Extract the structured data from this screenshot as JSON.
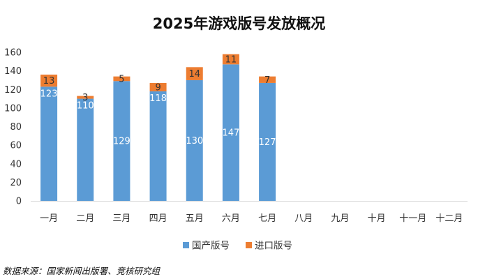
{
  "chart_data": {
    "type": "bar",
    "stacked": true,
    "title": "2025年游戏版号发放概况",
    "categories": [
      "一月",
      "二月",
      "三月",
      "四月",
      "五月",
      "六月",
      "七月",
      "八月",
      "九月",
      "十月",
      "十一月",
      "十二月"
    ],
    "series": [
      {
        "name": "国产版号",
        "color": "#5b9bd5",
        "label_color": "#ffffff",
        "values": [
          123,
          110,
          129,
          118,
          130,
          147,
          127,
          null,
          null,
          null,
          null,
          null
        ]
      },
      {
        "name": "进口版号",
        "color": "#ed7d31",
        "label_color": "#333333",
        "values": [
          13,
          3,
          5,
          9,
          14,
          11,
          7,
          null,
          null,
          null,
          null,
          null
        ]
      }
    ],
    "ylim": [
      0,
      160
    ],
    "yticks": [
      0,
      20,
      40,
      60,
      80,
      100,
      120,
      140,
      160
    ],
    "grid": false,
    "legend_position": "bottom"
  },
  "source": "数据来源：国家新闻出版署、竞核研究组"
}
